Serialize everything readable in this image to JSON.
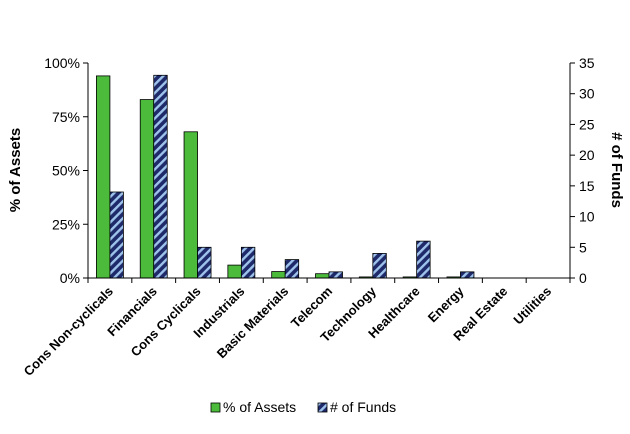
{
  "chart_data": {
    "type": "bar",
    "categories": [
      "Cons Non-cyclicals",
      "Financials",
      "Cons Cyclicals",
      "Industrials",
      "Basic Materials",
      "Telecom",
      "Technology",
      "Healthcare",
      "Energy",
      "Real Estate",
      "Utilities"
    ],
    "series": [
      {
        "name": "% of Assets",
        "axis": "left",
        "color": "#4CBB3C",
        "values": [
          0.94,
          0.83,
          0.68,
          0.06,
          0.03,
          0.02,
          0.005,
          0.005,
          0.005,
          0,
          0
        ]
      },
      {
        "name": "# of Funds",
        "axis": "right",
        "color": "#1F2A6B",
        "pattern": "diagonal-stripes",
        "values": [
          14,
          33,
          5,
          5,
          3,
          1,
          4,
          6,
          1,
          0,
          0
        ]
      }
    ],
    "ylabel": "% of Assets",
    "y2label": "# of Funds",
    "ylim": [
      0,
      1
    ],
    "y2lim": [
      0,
      35
    ],
    "yticks": [
      "0%",
      "25%",
      "50%",
      "75%",
      "100%"
    ],
    "y2ticks": [
      "0",
      "5",
      "10",
      "15",
      "20",
      "25",
      "30",
      "35"
    ],
    "grid": false,
    "legend_position": "bottom"
  }
}
